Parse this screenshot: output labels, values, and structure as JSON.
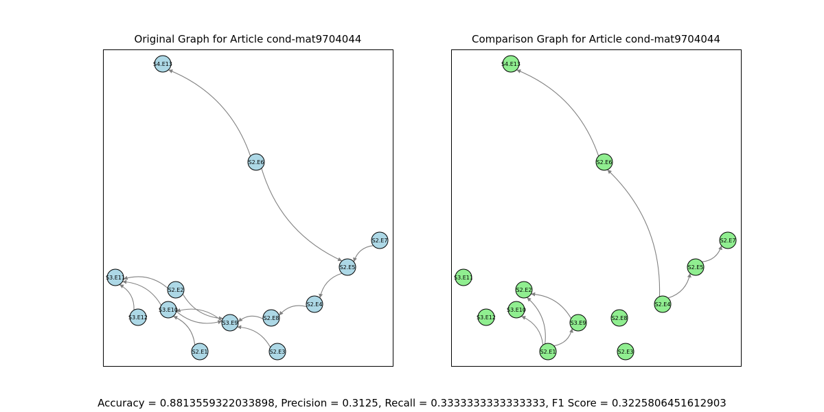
{
  "graphs": {
    "original": {
      "title": "Original Graph for Article cond-mat9704044",
      "node_color": "#add8e6",
      "nodes": [
        {
          "id": "S4.E13"
        },
        {
          "id": "S2.E6"
        },
        {
          "id": "S2.E7"
        },
        {
          "id": "S2.E5"
        },
        {
          "id": "S3.E11"
        },
        {
          "id": "S2.E2"
        },
        {
          "id": "S3.E10"
        },
        {
          "id": "S3.E12"
        },
        {
          "id": "S2.E4"
        },
        {
          "id": "S2.E8"
        },
        {
          "id": "S3.E9"
        },
        {
          "id": "S2.E1"
        },
        {
          "id": "S2.E3"
        }
      ],
      "edges": [
        {
          "from": "S2.E6",
          "to": "S4.E13"
        },
        {
          "from": "S2.E6",
          "to": "S2.E5"
        },
        {
          "from": "S2.E7",
          "to": "S2.E5"
        },
        {
          "from": "S2.E5",
          "to": "S2.E4"
        },
        {
          "from": "S2.E4",
          "to": "S2.E8"
        },
        {
          "from": "S2.E8",
          "to": "S3.E9"
        },
        {
          "from": "S2.E3",
          "to": "S3.E9"
        },
        {
          "from": "S3.E10",
          "to": "S3.E9"
        },
        {
          "from": "S2.E2",
          "to": "S3.E9"
        },
        {
          "from": "S2.E2",
          "to": "S3.E11"
        },
        {
          "from": "S3.E10",
          "to": "S3.E11"
        },
        {
          "from": "S3.E12",
          "to": "S3.E11"
        },
        {
          "from": "S3.E9",
          "to": "S3.E10"
        },
        {
          "from": "S2.E1",
          "to": "S3.E10"
        }
      ]
    },
    "comparison": {
      "title": "Comparison Graph for Article cond-mat9704044",
      "node_color": "#90ee90",
      "nodes": [
        {
          "id": "S4.E13"
        },
        {
          "id": "S2.E6"
        },
        {
          "id": "S2.E7"
        },
        {
          "id": "S2.E5"
        },
        {
          "id": "S3.E11"
        },
        {
          "id": "S2.E2"
        },
        {
          "id": "S3.E10"
        },
        {
          "id": "S3.E12"
        },
        {
          "id": "S2.E4"
        },
        {
          "id": "S2.E8"
        },
        {
          "id": "S3.E9"
        },
        {
          "id": "S2.E1"
        },
        {
          "id": "S2.E3"
        }
      ],
      "edges": [
        {
          "from": "S2.E6",
          "to": "S4.E13"
        },
        {
          "from": "S2.E4",
          "to": "S2.E6"
        },
        {
          "from": "S2.E4",
          "to": "S2.E5"
        },
        {
          "from": "S2.E5",
          "to": "S2.E7"
        },
        {
          "from": "S2.E1",
          "to": "S2.E2"
        },
        {
          "from": "S2.E1",
          "to": "S3.E10"
        },
        {
          "from": "S2.E1",
          "to": "S3.E9"
        },
        {
          "from": "S3.E9",
          "to": "S2.E2"
        }
      ]
    }
  },
  "metrics": {
    "accuracy_label": "Accuracy = ",
    "accuracy": "0.8813559322033898",
    "precision_label": ", Precision = ",
    "precision": "0.3125",
    "recall_label": ", Recall = ",
    "recall": "0.3333333333333333",
    "f1_label": ", F1 Score = ",
    "f1": "0.3225806451612903"
  },
  "colors": {
    "edge": "#808080",
    "node_border": "#000000",
    "frame": "#000000"
  }
}
